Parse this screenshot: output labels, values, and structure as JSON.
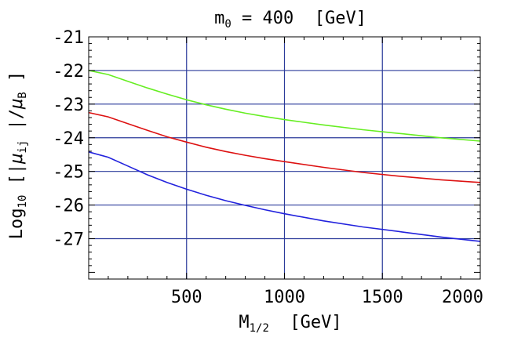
{
  "chart_data": {
    "type": "line",
    "title": {
      "prefix": "m",
      "subscript": "0",
      "rest": " = 400  [GeV]"
    },
    "xlabel": {
      "prefix": "M",
      "subscript": "1/2",
      "rest": "  [GeV]"
    },
    "ylabel": {
      "part1": "Log",
      "sub1": "10",
      "part2": " [|",
      "mu1": "μ",
      "sub2": "ij",
      "part3": " |/",
      "mu2": "μ",
      "sub3": "B",
      "part4": " ]"
    },
    "xlim": [
      0,
      2000
    ],
    "ylim": [
      -28.2,
      -21
    ],
    "x_ticks": [
      500,
      1000,
      1500,
      2000
    ],
    "x_tick_labels": [
      "500",
      "1000",
      "1500",
      "2000"
    ],
    "y_ticks": [
      -21,
      -22,
      -23,
      -24,
      -25,
      -26,
      -27
    ],
    "y_tick_labels": [
      "-21",
      "-22",
      "-23",
      "-24",
      "-25",
      "-26",
      "-27"
    ],
    "grid": {
      "vertical_at": [
        500,
        1000,
        1500
      ],
      "horizontal_at": [
        -22,
        -23,
        -24,
        -25,
        -26,
        -27
      ],
      "color": "#2a3a9a"
    },
    "series": [
      {
        "name": "green",
        "color": "#66ee22",
        "x": [
          0,
          100,
          200,
          300,
          400,
          500,
          600,
          700,
          800,
          900,
          1000,
          1200,
          1400,
          1600,
          1800,
          2000
        ],
        "y": [
          -22.0,
          -22.12,
          -22.32,
          -22.52,
          -22.7,
          -22.87,
          -23.02,
          -23.15,
          -23.27,
          -23.37,
          -23.46,
          -23.62,
          -23.76,
          -23.88,
          -24.0,
          -24.1
        ]
      },
      {
        "name": "red",
        "color": "#dd1111",
        "x": [
          0,
          100,
          200,
          300,
          400,
          500,
          600,
          700,
          800,
          900,
          1000,
          1200,
          1400,
          1600,
          1800,
          2000
        ],
        "y": [
          -23.25,
          -23.38,
          -23.58,
          -23.78,
          -23.97,
          -24.13,
          -24.28,
          -24.41,
          -24.52,
          -24.62,
          -24.71,
          -24.88,
          -25.03,
          -25.15,
          -25.25,
          -25.33
        ]
      },
      {
        "name": "blue",
        "color": "#2222dd",
        "x": [
          0,
          100,
          200,
          300,
          400,
          500,
          600,
          700,
          800,
          900,
          1000,
          1200,
          1400,
          1600,
          1800,
          2000
        ],
        "y": [
          -24.42,
          -24.58,
          -24.84,
          -25.1,
          -25.33,
          -25.53,
          -25.71,
          -25.87,
          -26.01,
          -26.14,
          -26.26,
          -26.47,
          -26.65,
          -26.8,
          -26.95,
          -27.08
        ]
      }
    ]
  }
}
